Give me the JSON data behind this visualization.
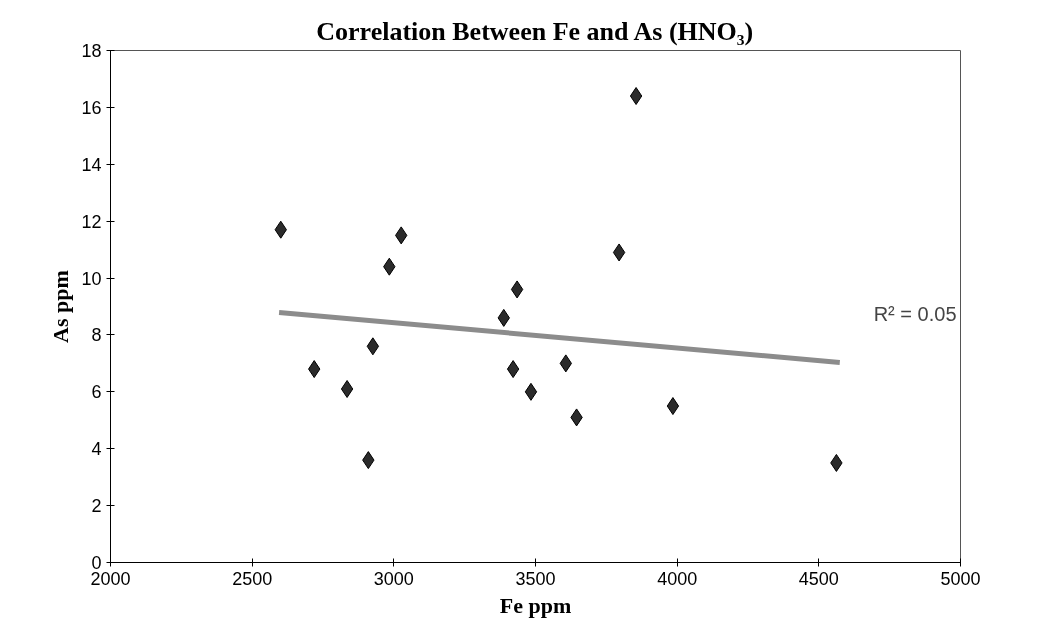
{
  "chart_data": {
    "type": "scatter",
    "title": "Correlation Between Fe and As (HNO₃)",
    "xlabel": "Fe ppm",
    "ylabel": "As ppm",
    "xlim": [
      2000,
      5000
    ],
    "xticks": [
      2000,
      2500,
      3000,
      3500,
      4000,
      4500,
      5000
    ],
    "ylim": [
      0,
      18
    ],
    "yticks": [
      0,
      2,
      4,
      6,
      8,
      10,
      12,
      14,
      16,
      18
    ],
    "marker": "diamond",
    "grid": false,
    "series": [
      {
        "color": "#2b2b2b",
        "x": [
          2601,
          2719,
          2835,
          2910,
          2926,
          2984,
          3026,
          3388,
          3421,
          3435,
          3484,
          3607,
          3645,
          3795,
          3855,
          3985,
          4562
        ],
        "values": [
          11.7,
          6.8,
          6.1,
          3.6,
          7.6,
          10.4,
          11.5,
          8.6,
          6.8,
          9.6,
          6.0,
          7.0,
          5.1,
          10.9,
          16.4,
          5.5,
          3.5
        ]
      },
      {
        "type": "line",
        "marker": "none",
        "color": "#8c8c8c",
        "x": [
          2595,
          4574
        ],
        "values": [
          8.79,
          7.03
        ]
      }
    ],
    "annotations": [
      "R² = 0.05"
    ]
  }
}
